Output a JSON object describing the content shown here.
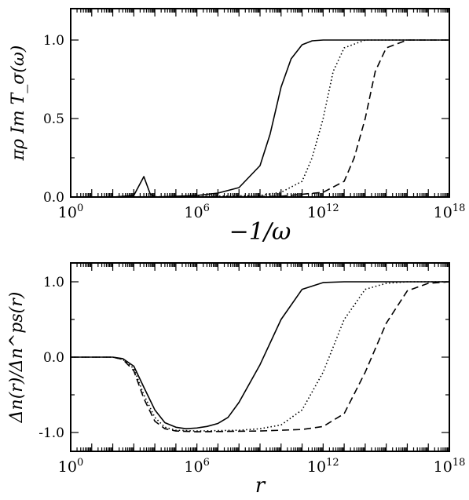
{
  "chart_data": [
    {
      "type": "line",
      "xscale": "log10",
      "xlim": [
        1,
        1e+18
      ],
      "ylim": [
        0,
        1.2
      ],
      "xlabel": "−1/ω",
      "ylabel": "πρ Im T_σ(ω)",
      "xtick_labels": [
        {
          "base": "10",
          "exp": "0",
          "value": 1
        },
        {
          "base": "10",
          "exp": "6",
          "value": 1000000.0
        },
        {
          "base": "10",
          "exp": "12",
          "value": 1000000000000.0
        },
        {
          "base": "10",
          "exp": "18",
          "value": 1e+18
        }
      ],
      "yticks": [
        0.0,
        0.5,
        1.0
      ],
      "ytick_labels": [
        "0.0",
        "0.5",
        "1.0"
      ],
      "series": [
        {
          "style": "solid",
          "x": [
            1,
            100,
            1000,
            3000,
            6000,
            10000,
            30000,
            100000,
            1000000.0,
            10000000.0,
            100000000.0,
            1000000000.0,
            3000000000.0,
            10000000000.0,
            30000000000.0,
            100000000000.0,
            300000000000.0,
            1000000000000.0,
            10000000000000.0,
            1e+18
          ],
          "y": [
            0,
            0,
            0.01,
            0.13,
            0.02,
            0,
            0.002,
            0.005,
            0.01,
            0.025,
            0.06,
            0.2,
            0.4,
            0.7,
            0.88,
            0.97,
            0.995,
            1.0,
            1.0,
            1.0
          ]
        },
        {
          "style": "dotted",
          "x": [
            1,
            1000000.0,
            1000000000.0,
            10000000000.0,
            100000000000.0,
            300000000000.0,
            1000000000000.0,
            3000000000000.0,
            10000000000000.0,
            100000000000000.0,
            1000000000000000.0,
            1e+18
          ],
          "y": [
            0,
            0.003,
            0.01,
            0.03,
            0.1,
            0.25,
            0.5,
            0.8,
            0.95,
            1.0,
            1.0,
            1.0
          ]
        },
        {
          "style": "dashed",
          "x": [
            1,
            1000000.0,
            10000000000.0,
            1000000000000.0,
            10000000000000.0,
            30000000000000.0,
            100000000000000.0,
            300000000000000.0,
            1000000000000000.0,
            1e+16,
            1e+18
          ],
          "y": [
            0,
            0,
            0.005,
            0.03,
            0.1,
            0.25,
            0.5,
            0.8,
            0.95,
            1.0,
            1.0
          ]
        }
      ]
    },
    {
      "type": "line",
      "xscale": "log10",
      "xlim": [
        1,
        1e+18
      ],
      "ylim": [
        -1.25,
        1.25
      ],
      "xlabel": "r",
      "ylabel": "Δn(r)/Δn^ps(r)",
      "xtick_labels": [
        {
          "base": "10",
          "exp": "0",
          "value": 1
        },
        {
          "base": "10",
          "exp": "6",
          "value": 1000000.0
        },
        {
          "base": "10",
          "exp": "12",
          "value": 1000000000000.0
        },
        {
          "base": "10",
          "exp": "18",
          "value": 1e+18
        }
      ],
      "yticks": [
        -1.0,
        0.0,
        1.0
      ],
      "ytick_labels": [
        "-1.0",
        "0.0",
        "1.0"
      ],
      "series": [
        {
          "style": "solid",
          "x": [
            1,
            100,
            300,
            1000,
            3000,
            10000,
            30000,
            100000,
            300000,
            1000000.0,
            3000000.0,
            10000000.0,
            30000000.0,
            100000000.0,
            1000000000.0,
            10000000000.0,
            100000000000.0,
            1000000000000.0,
            10000000000000.0,
            1e+18
          ],
          "y": [
            0,
            0,
            -0.02,
            -0.12,
            -0.4,
            -0.7,
            -0.87,
            -0.93,
            -0.95,
            -0.94,
            -0.92,
            -0.88,
            -0.8,
            -0.6,
            -0.1,
            0.5,
            0.9,
            0.99,
            1.0,
            1.0
          ]
        },
        {
          "style": "dotted",
          "x": [
            1,
            100,
            300,
            1000,
            3000,
            10000,
            30000,
            100000,
            1000000.0,
            100000000.0,
            1000000000.0,
            10000000000.0,
            100000000000.0,
            1000000000000.0,
            10000000000000.0,
            100000000000000.0,
            1000000000000000.0,
            1e+16,
            1e+18
          ],
          "y": [
            0,
            0,
            -0.03,
            -0.15,
            -0.5,
            -0.8,
            -0.93,
            -0.97,
            -0.98,
            -0.97,
            -0.95,
            -0.9,
            -0.7,
            -0.2,
            0.5,
            0.9,
            0.98,
            1.0,
            1.0
          ]
        },
        {
          "style": "dashed",
          "x": [
            1,
            100,
            300,
            1000,
            3000,
            10000,
            30000,
            100000,
            1000000.0,
            1000000000.0,
            100000000000.0,
            1000000000000.0,
            10000000000000.0,
            100000000000000.0,
            1000000000000000.0,
            1e+16,
            1e+17,
            1e+18
          ],
          "y": [
            0,
            0,
            -0.03,
            -0.18,
            -0.55,
            -0.85,
            -0.95,
            -0.98,
            -0.99,
            -0.98,
            -0.96,
            -0.92,
            -0.75,
            -0.2,
            0.45,
            0.88,
            0.98,
            1.0
          ]
        }
      ]
    }
  ]
}
